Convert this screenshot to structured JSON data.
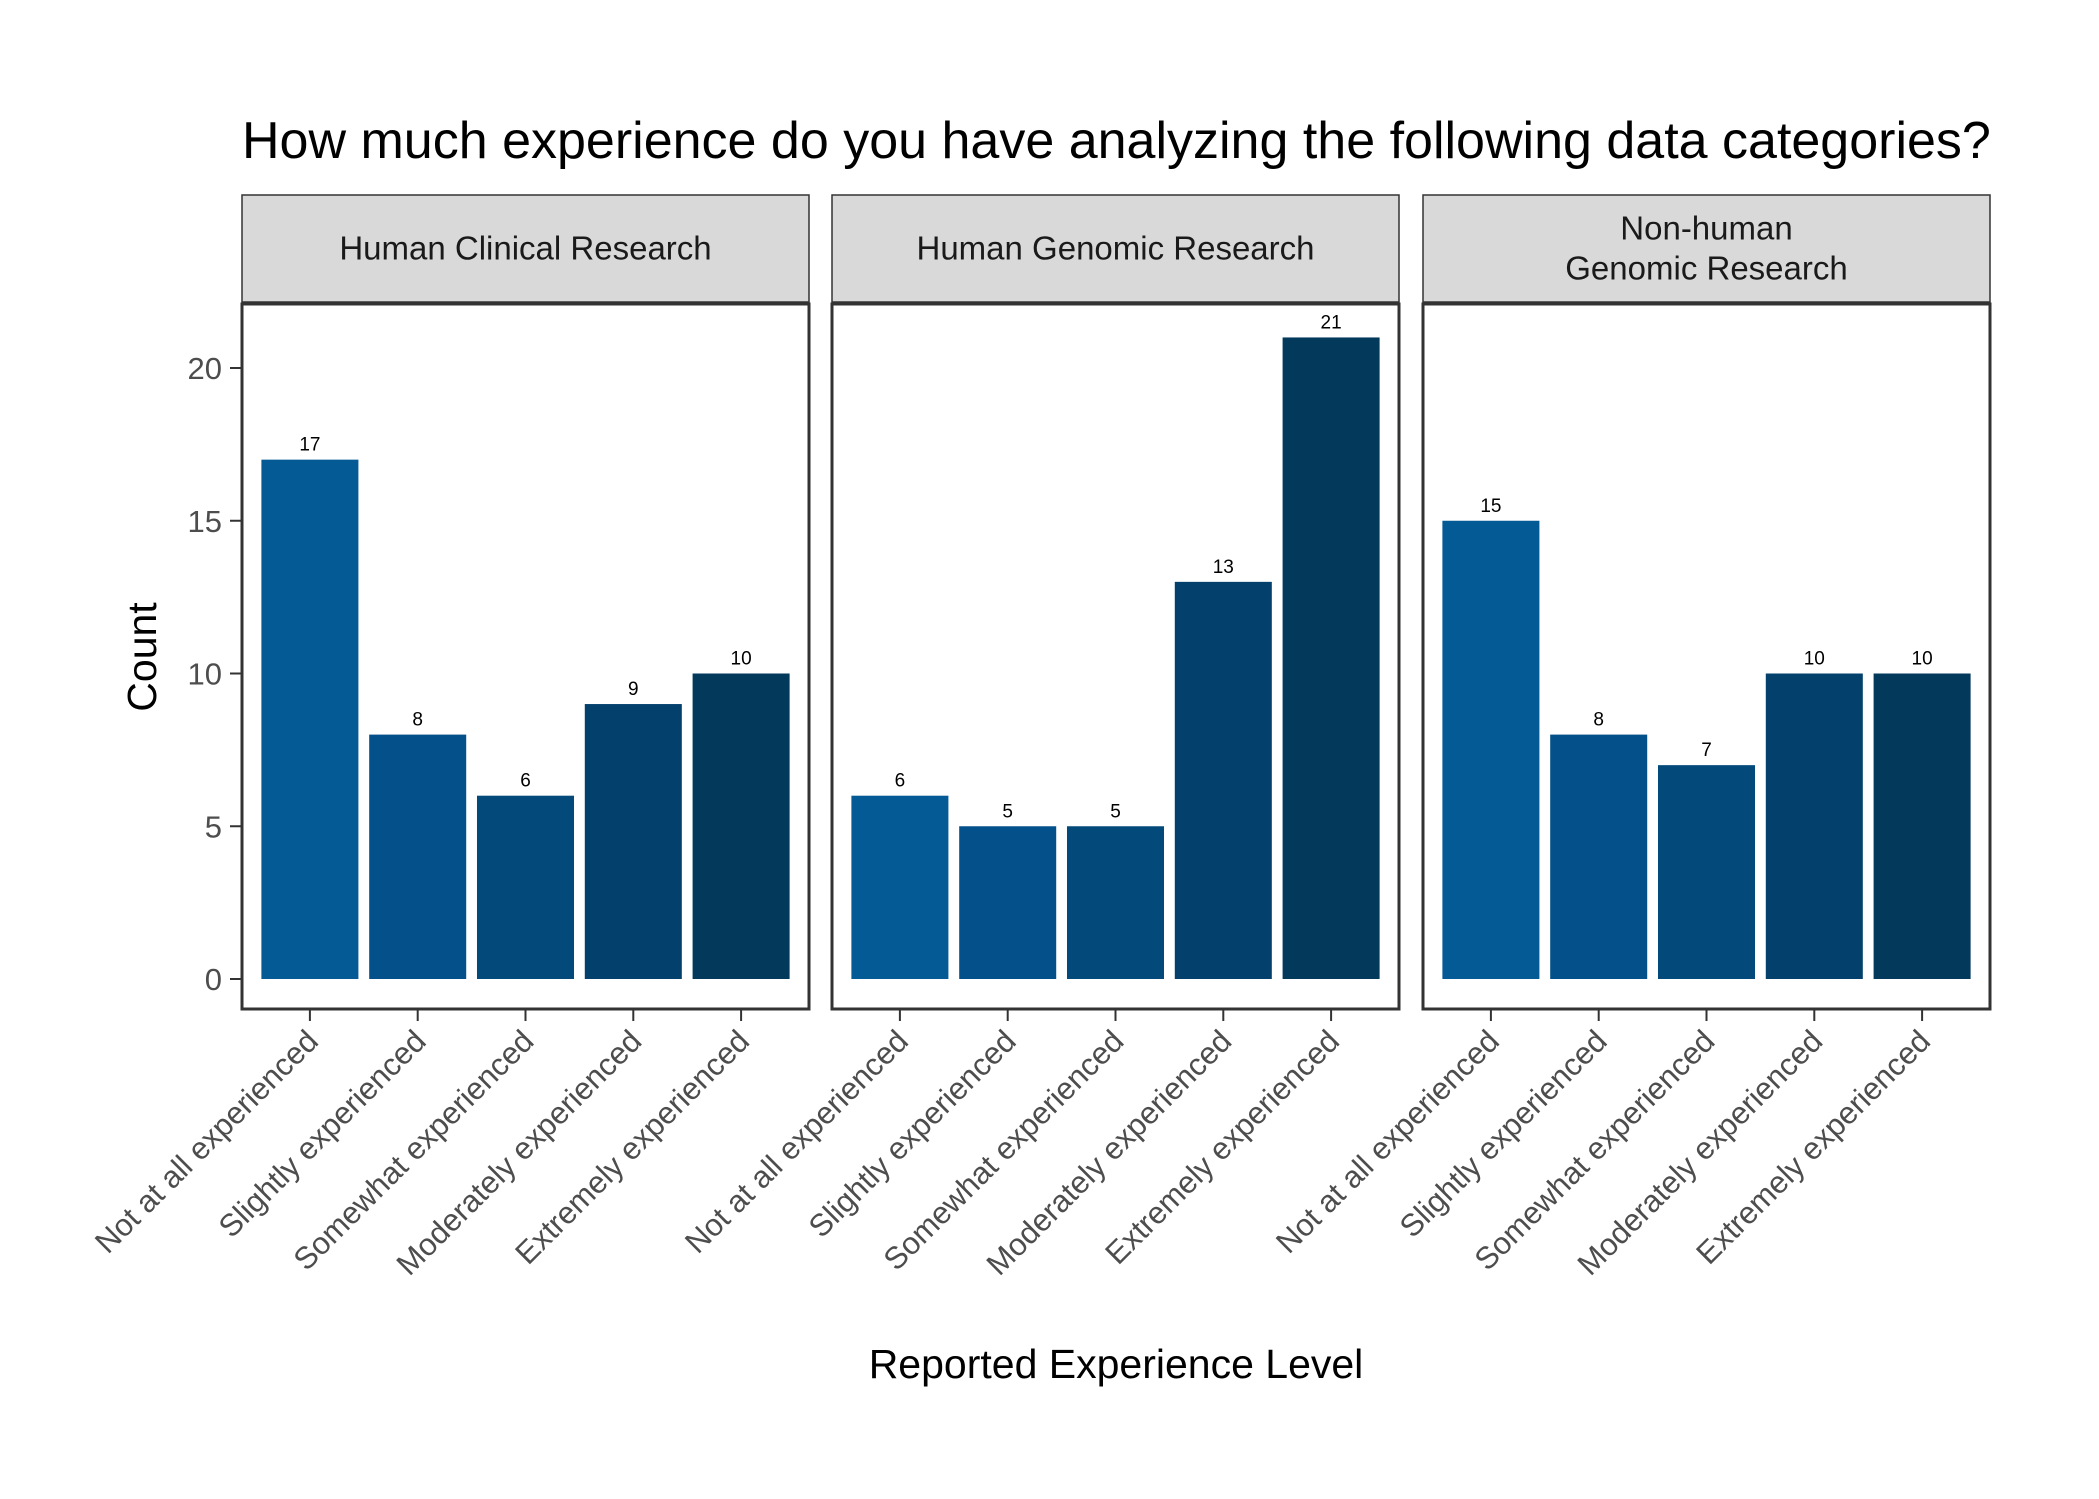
{
  "chart_data": {
    "type": "bar",
    "title": "How much experience do you have analyzing the following data categories?",
    "xlabel": "Reported Experience Level",
    "ylabel": "Count",
    "ylim": [
      0,
      22
    ],
    "yticks": [
      0,
      5,
      10,
      15,
      20
    ],
    "grid": false,
    "legend": "none",
    "categories": [
      "Not at all experienced",
      "Slightly experienced",
      "Somewhat experienced",
      "Moderately experienced",
      "Extremely experienced"
    ],
    "colors": [
      "#045a95",
      "#04508a",
      "#034a7b",
      "#03406c",
      "#033a5c"
    ],
    "panels": [
      {
        "name": "Human Clinical Research",
        "values": [
          17,
          8,
          6,
          9,
          10
        ]
      },
      {
        "name": "Human Genomic Research",
        "values": [
          6,
          5,
          5,
          13,
          21
        ]
      },
      {
        "name": "Non-human\nGenomic Research",
        "values": [
          15,
          8,
          7,
          10,
          10
        ]
      }
    ]
  }
}
